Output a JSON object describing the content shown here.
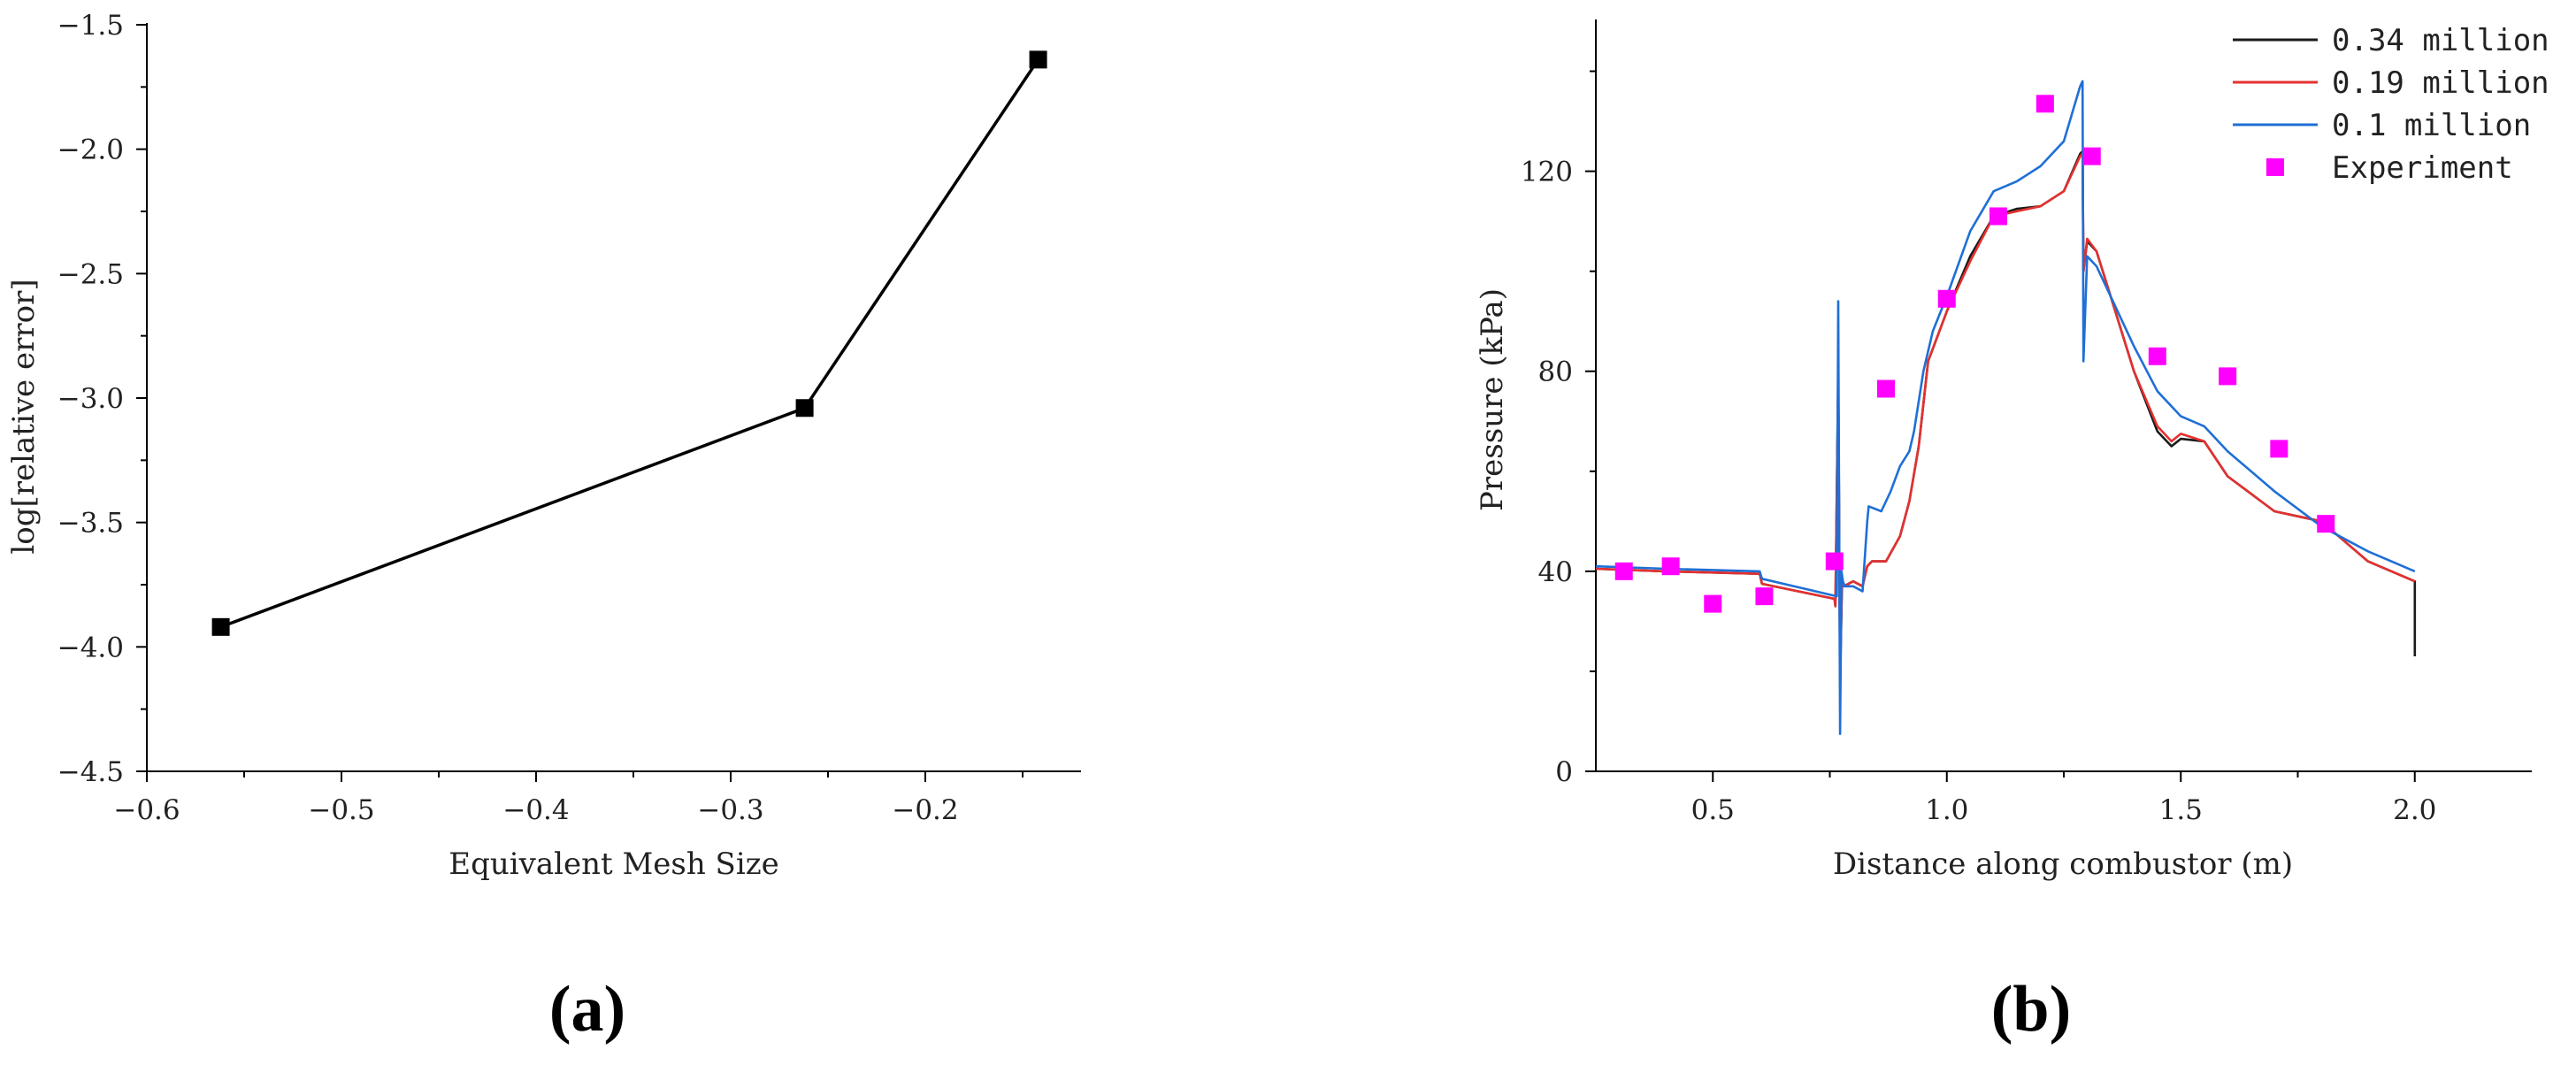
{
  "chart_data": [
    {
      "type": "line",
      "panel_label": "(a)",
      "xlabel": "Equivalent Mesh Size",
      "ylabel": "log[relative error]",
      "xlim": [
        -0.6,
        -0.12
      ],
      "ylim": [
        -4.5,
        -1.5
      ],
      "xticks": [
        -0.6,
        -0.5,
        -0.4,
        -0.3,
        -0.2
      ],
      "xtick_labels": [
        "−0.6",
        "−0.5",
        "−0.4",
        "−0.3",
        "−0.2"
      ],
      "yticks": [
        -4.5,
        -4.0,
        -3.5,
        -3.0,
        -2.5,
        -2.0,
        -1.5
      ],
      "ytick_labels": [
        "−4.5",
        "−4.0",
        "−3.5",
        "−3.0",
        "−2.5",
        "−2.0",
        "−1.5"
      ],
      "grid": false,
      "series": [
        {
          "color": "#000000",
          "marker": "square",
          "x": [
            -0.562,
            -0.262,
            -0.142
          ],
          "y": [
            -3.92,
            -3.04,
            -1.64
          ]
        }
      ]
    },
    {
      "type": "line",
      "panel_label": "(b)",
      "xlabel": "Distance along combustor (m)",
      "ylabel": "Pressure (kPa)",
      "xlim": [
        0.25,
        2.25
      ],
      "ylim": [
        0,
        150
      ],
      "xticks": [
        0.5,
        1.0,
        1.5,
        2.0
      ],
      "xtick_labels": [
        "0.5",
        "1.0",
        "1.5",
        "2.0"
      ],
      "yticks": [
        0,
        40,
        80,
        120
      ],
      "ytick_labels": [
        "0",
        "40",
        "80",
        "120"
      ],
      "grid": false,
      "legend_position": "top-right",
      "series": [
        {
          "name": "0.34 million",
          "color": "#1a1a1a",
          "x": [
            0.25,
            0.4,
            0.6,
            0.605,
            0.76,
            0.762,
            0.768,
            0.772,
            0.776,
            0.78,
            0.8,
            0.82,
            0.83,
            0.84,
            0.87,
            0.9,
            0.92,
            0.94,
            0.96,
            1.0,
            1.05,
            1.1,
            1.15,
            1.2,
            1.25,
            1.285,
            1.29,
            1.292,
            1.3,
            1.32,
            1.35,
            1.4,
            1.45,
            1.48,
            1.5,
            1.55,
            1.6,
            1.7,
            1.75,
            1.8,
            1.9,
            2.0,
            2.0
          ],
          "y": [
            40.5,
            40,
            39.5,
            37.5,
            34.5,
            33,
            80,
            18,
            38,
            37,
            38,
            37,
            41,
            42,
            42,
            47,
            54,
            65,
            82,
            92,
            103,
            111,
            112.5,
            113,
            116,
            123.5,
            124,
            100,
            106,
            104,
            95,
            80,
            68,
            65,
            66.5,
            66,
            59,
            52,
            51,
            50,
            42,
            38,
            23
          ]
        },
        {
          "name": "0.19 million",
          "color": "#e53030",
          "x": [
            0.25,
            0.4,
            0.6,
            0.605,
            0.76,
            0.762,
            0.768,
            0.772,
            0.776,
            0.78,
            0.8,
            0.82,
            0.83,
            0.84,
            0.87,
            0.9,
            0.92,
            0.94,
            0.96,
            1.0,
            1.05,
            1.1,
            1.15,
            1.2,
            1.25,
            1.285,
            1.29,
            1.292,
            1.3,
            1.32,
            1.35,
            1.4,
            1.45,
            1.48,
            1.5,
            1.55,
            1.6,
            1.7,
            1.75,
            1.8,
            1.9,
            2.0
          ],
          "y": [
            40.5,
            40,
            39.5,
            37.5,
            34.5,
            33,
            78,
            20,
            38,
            37,
            38,
            37,
            41,
            42,
            42,
            47,
            54,
            65,
            82,
            92,
            102,
            111,
            112,
            113,
            116,
            123,
            123.5,
            100,
            106.5,
            104,
            95,
            80,
            69,
            66,
            67.5,
            66,
            59,
            52,
            51,
            50,
            42,
            38
          ]
        },
        {
          "name": "0.1 million",
          "color": "#1f6fd6",
          "x": [
            0.25,
            0.4,
            0.6,
            0.605,
            0.765,
            0.768,
            0.772,
            0.775,
            0.778,
            0.782,
            0.8,
            0.82,
            0.83,
            0.833,
            0.86,
            0.88,
            0.9,
            0.92,
            0.93,
            0.95,
            0.97,
            1.0,
            1.05,
            1.1,
            1.15,
            1.2,
            1.25,
            1.285,
            1.29,
            1.292,
            1.3,
            1.32,
            1.35,
            1.4,
            1.45,
            1.5,
            1.55,
            1.6,
            1.7,
            1.8,
            1.9,
            2.0
          ],
          "y": [
            41,
            40.5,
            40,
            38.5,
            35,
            94,
            7.5,
            40,
            38,
            37,
            37,
            36,
            50,
            53,
            52,
            56,
            61,
            64,
            68,
            80,
            88,
            95,
            108,
            116,
            118,
            121,
            126,
            137,
            138,
            82,
            103,
            101,
            95,
            85,
            76,
            71,
            69,
            64,
            56,
            49,
            44,
            40
          ]
        },
        {
          "name": "Experiment",
          "color": "#ff00ff",
          "marker": "square",
          "mode": "markers",
          "x": [
            0.31,
            0.41,
            0.5,
            0.61,
            0.76,
            0.87,
            1.0,
            1.11,
            1.21,
            1.31,
            1.45,
            1.6,
            1.71,
            1.81
          ],
          "y": [
            40,
            41,
            33.5,
            35,
            42,
            76.5,
            94.5,
            111,
            133.5,
            123,
            83,
            79,
            64.5,
            49.5
          ]
        }
      ]
    }
  ]
}
